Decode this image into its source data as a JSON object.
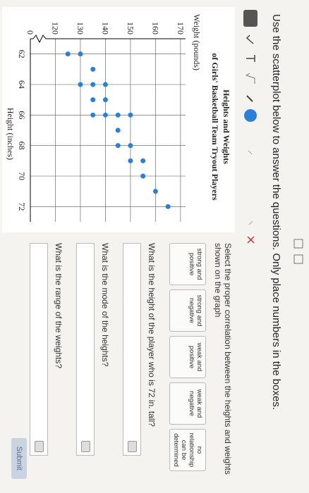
{
  "header": {
    "instruction": "Use the scatterplot below to answer the questions. Only place numbers in the boxes."
  },
  "chart_data": {
    "type": "scatter",
    "title": "Heights and Weights",
    "subtitle": "of Girls' Basketball Team Tryout Players",
    "x_label": "Height (inches)",
    "y_label": "Weight (pounds)",
    "x": [
      62,
      62,
      63,
      64,
      64,
      64,
      65,
      65,
      66,
      66,
      66,
      66,
      67,
      68,
      68,
      69,
      69,
      70,
      71,
      72
    ],
    "values": [
      125,
      130,
      135,
      130,
      135,
      140,
      135,
      140,
      135,
      140,
      145,
      150,
      145,
      145,
      150,
      150,
      155,
      155,
      160,
      165
    ],
    "color": "#2b7fd6",
    "xlim": [
      61,
      73
    ],
    "xticks": [
      62,
      64,
      66,
      68,
      70,
      72
    ],
    "ylim": [
      110,
      172
    ],
    "yticks": [
      120,
      130,
      140,
      150,
      160,
      170
    ],
    "y_break_label": "0",
    "grid": true
  },
  "questions": [
    {
      "prompt": "Select the proper correlation between the heights and weights shown on the graph",
      "options": [
        "strong and positive",
        "strong and negative",
        "weak and positive",
        "weak and negative",
        "no relationship can be determined"
      ]
    },
    {
      "prompt": "What is the height of the player who is 72 in. tall?"
    },
    {
      "prompt": "What is the mode of the heights?"
    },
    {
      "prompt": "What is the range of the weights?"
    }
  ],
  "submit": "Submit"
}
